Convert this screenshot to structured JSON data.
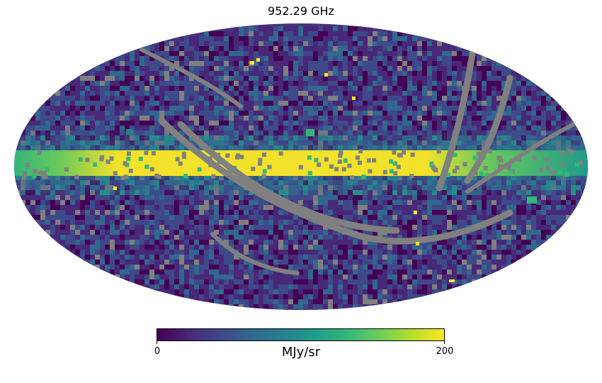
{
  "title": "952.29 GHz",
  "projection": "mollweide",
  "colormap": {
    "name": "viridis",
    "stops": [
      "#440154",
      "#482878",
      "#3e4989",
      "#31688e",
      "#26828e",
      "#1f9e89",
      "#35b779",
      "#6ece58",
      "#b5de2b",
      "#fde725"
    ],
    "unit": "MJy/sr",
    "min": 0,
    "max": 200,
    "tick_labels": [
      "0",
      "200"
    ]
  },
  "masked_color": "#808080",
  "features": {
    "galactic_plane": "saturated band along the equator",
    "masked_pixels": "scattered grey pixels and scanning stripes"
  }
}
